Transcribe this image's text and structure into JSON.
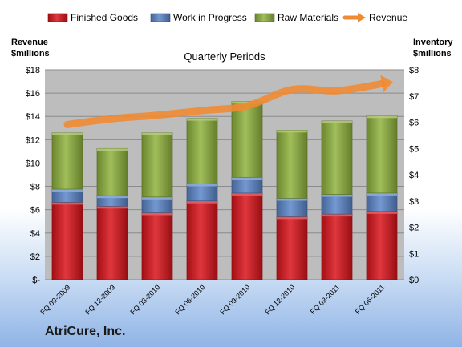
{
  "company": "AtriCure, Inc.",
  "chart_data": {
    "type": "bar",
    "stacked": true,
    "title": "Quarterly Periods",
    "categories": [
      "FQ 09-2009",
      "FQ 12-2009",
      "FQ 03-2010",
      "FQ 06-2010",
      "FQ 09-2010",
      "FQ 12-2010",
      "FQ 03-2011",
      "FQ 06-2011"
    ],
    "series": [
      {
        "name": "Finished Goods",
        "color": "#d9141b",
        "axis": "right",
        "values": [
          2.95,
          2.8,
          2.55,
          3.0,
          3.3,
          2.4,
          2.5,
          2.6
        ]
      },
      {
        "name": "Work in Progress",
        "color": "#5b86c9",
        "axis": "right",
        "values": [
          0.5,
          0.4,
          0.6,
          0.65,
          0.6,
          0.7,
          0.75,
          0.7
        ]
      },
      {
        "name": "Raw Materials",
        "color": "#8fb23d",
        "axis": "right",
        "values": [
          2.15,
          1.8,
          2.45,
          2.5,
          2.9,
          2.6,
          2.8,
          2.95
        ]
      }
    ],
    "line_series": {
      "name": "Revenue",
      "color": "#f08a32",
      "axis": "left",
      "values": [
        13.3,
        13.8,
        14.1,
        14.5,
        14.9,
        16.3,
        16.2,
        16.8
      ]
    },
    "left_axis": {
      "label_line1": "Revenue",
      "label_line2": "$millions",
      "min": 0,
      "max": 18,
      "step": 2,
      "tick_labels": [
        "$-",
        "$2",
        "$4",
        "$6",
        "$8",
        "$10",
        "$12",
        "$14",
        "$16",
        "$18"
      ]
    },
    "right_axis": {
      "label_line1": "Inventory",
      "label_line2": "$millions",
      "min": 0,
      "max": 8,
      "step": 1,
      "tick_labels": [
        "$0",
        "$1",
        "$2",
        "$3",
        "$4",
        "$5",
        "$6",
        "$7",
        "$8"
      ]
    },
    "legend_position": "top",
    "grid": true
  }
}
